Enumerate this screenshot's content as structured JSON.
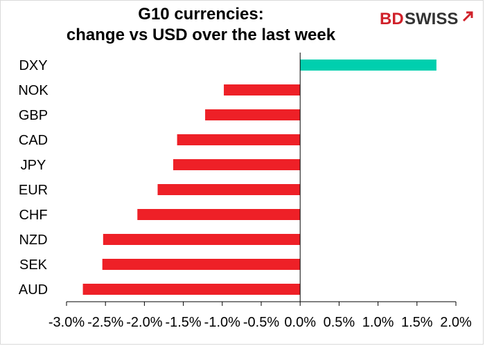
{
  "title": {
    "line1": "G10 currencies:",
    "line2": "change vs USD over the last week"
  },
  "logo": {
    "text_bd": "BD",
    "text_swiss": "SWISS"
  },
  "colors": {
    "positive": "#00cfae",
    "negative": "#ee2027",
    "axis": "#000000",
    "logo_red": "#d0212a",
    "logo_dark": "#333333"
  },
  "chart_data": {
    "type": "bar",
    "orientation": "horizontal",
    "title": "G10 currencies: change vs USD over the last week",
    "categories": [
      "DXY",
      "NOK",
      "GBP",
      "CAD",
      "JPY",
      "EUR",
      "CHF",
      "NZD",
      "SEK",
      "AUD"
    ],
    "values": [
      1.75,
      -0.98,
      -1.22,
      -1.58,
      -1.63,
      -1.83,
      -2.09,
      -2.53,
      -2.54,
      -2.79
    ],
    "xlim": [
      -3.0,
      2.0
    ],
    "x_ticks": [
      -3.0,
      -2.5,
      -2.0,
      -1.5,
      -1.0,
      -0.5,
      0.0,
      0.5,
      1.0,
      1.5,
      2.0
    ],
    "x_tick_labels": [
      "-3.0%",
      "-2.5%",
      "-2.0%",
      "-1.5%",
      "-1.0%",
      "-0.5%",
      "0.0%",
      "0.5%",
      "1.0%",
      "1.5%",
      "2.0%"
    ],
    "xlabel": "",
    "ylabel": "",
    "grid": false,
    "legend": false
  }
}
